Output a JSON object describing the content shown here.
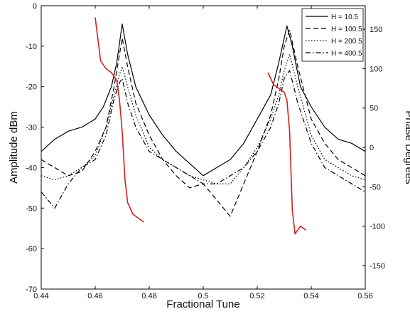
{
  "chart_data": {
    "type": "line",
    "xlabel": "Fractional Tune",
    "ylabel_left": "Amplitude dBm",
    "ylabel_right": "Phase Degrees",
    "xlim": [
      0.44,
      0.56
    ],
    "ylim_left": [
      -70,
      0
    ],
    "ylim_right": [
      -180,
      180
    ],
    "x_ticks": [
      "0.44",
      "0.46",
      "0.48",
      "0.5",
      "0.52",
      "0.54",
      "0.56"
    ],
    "y_left_ticks": [
      "-70",
      "-60",
      "-50",
      "-40",
      "-30",
      "-20",
      "-10",
      "0"
    ],
    "y_right_ticks": [
      "-150",
      "-100",
      "-50",
      "0",
      "50",
      "100",
      "150"
    ],
    "grid": false,
    "legend_position": "top-right",
    "series": [
      {
        "name": "H = 10.5",
        "axis": "left",
        "style": "solid",
        "color": "#000000",
        "x": [
          0.44,
          0.445,
          0.45,
          0.455,
          0.46,
          0.463,
          0.466,
          0.468,
          0.47,
          0.472,
          0.475,
          0.48,
          0.485,
          0.49,
          0.495,
          0.5,
          0.505,
          0.51,
          0.515,
          0.52,
          0.525,
          0.528,
          0.53,
          0.531,
          0.533,
          0.536,
          0.54,
          0.545,
          0.55,
          0.555,
          0.56
        ],
        "y": [
          -36,
          -33,
          -31,
          -30,
          -28,
          -25,
          -20,
          -14,
          -4.5,
          -12,
          -20,
          -27,
          -32,
          -36,
          -39,
          -42,
          -40,
          -38,
          -34,
          -28,
          -22,
          -14,
          -8,
          -5,
          -10,
          -20,
          -25,
          -30,
          -33,
          -34,
          -36
        ]
      },
      {
        "name": "H = 100.5",
        "axis": "left",
        "style": "dashed",
        "color": "#000000",
        "x": [
          0.44,
          0.445,
          0.45,
          0.455,
          0.46,
          0.464,
          0.467,
          0.469,
          0.47,
          0.472,
          0.475,
          0.48,
          0.485,
          0.49,
          0.495,
          0.5,
          0.505,
          0.51,
          0.515,
          0.52,
          0.525,
          0.528,
          0.53,
          0.532,
          0.535,
          0.54,
          0.545,
          0.55,
          0.555,
          0.56
        ],
        "y": [
          -38,
          -40,
          -42,
          -41,
          -36,
          -30,
          -20,
          -12,
          -8,
          -15,
          -24,
          -32,
          -38,
          -42,
          -45,
          -44,
          -48,
          -52,
          -44,
          -36,
          -27,
          -18,
          -10,
          -6,
          -15,
          -28,
          -34,
          -38,
          -40,
          -42
        ]
      },
      {
        "name": "H = 200.5",
        "axis": "left",
        "style": "dotted",
        "color": "#000000",
        "x": [
          0.44,
          0.445,
          0.45,
          0.455,
          0.46,
          0.464,
          0.467,
          0.469,
          0.47,
          0.472,
          0.475,
          0.48,
          0.485,
          0.49,
          0.495,
          0.5,
          0.505,
          0.51,
          0.515,
          0.52,
          0.525,
          0.528,
          0.53,
          0.532,
          0.535,
          0.54,
          0.545,
          0.55,
          0.555,
          0.56
        ],
        "y": [
          -42,
          -43,
          -42,
          -40,
          -37,
          -30,
          -22,
          -17,
          -15,
          -20,
          -27,
          -35,
          -38,
          -40,
          -42,
          -43,
          -44,
          -44,
          -40,
          -35,
          -28,
          -22,
          -16,
          -12,
          -20,
          -32,
          -38,
          -40,
          -42,
          -43
        ]
      },
      {
        "name": "H = 400.5",
        "axis": "left",
        "style": "dashdot",
        "color": "#000000",
        "x": [
          0.44,
          0.445,
          0.45,
          0.455,
          0.46,
          0.464,
          0.467,
          0.469,
          0.47,
          0.472,
          0.475,
          0.48,
          0.485,
          0.49,
          0.495,
          0.5,
          0.505,
          0.51,
          0.515,
          0.52,
          0.525,
          0.528,
          0.53,
          0.532,
          0.535,
          0.54,
          0.545,
          0.55,
          0.555,
          0.56
        ],
        "y": [
          -46,
          -50,
          -44,
          -40,
          -38,
          -32,
          -23,
          -19,
          -18,
          -24,
          -30,
          -36,
          -38,
          -40,
          -42,
          -44,
          -44,
          -42,
          -40,
          -36,
          -30,
          -24,
          -18,
          -16,
          -24,
          -34,
          -40,
          -42,
          -44,
          -46
        ]
      },
      {
        "name": "",
        "axis": "right",
        "style": "solid",
        "color": "#d42020",
        "x": [
          0.46,
          0.462,
          0.464,
          0.466,
          0.468,
          0.469,
          0.47,
          0.471,
          0.472,
          0.474,
          0.476,
          0.478
        ],
        "y": [
          165,
          110,
          100,
          95,
          85,
          60,
          20,
          -40,
          -70,
          -85,
          -90,
          -95
        ]
      },
      {
        "name": "",
        "axis": "right",
        "style": "solid",
        "color": "#d42020",
        "x": [
          0.524,
          0.526,
          0.528,
          0.53,
          0.531,
          0.532,
          0.533,
          0.534,
          0.536,
          0.538
        ],
        "y": [
          95,
          80,
          75,
          70,
          60,
          20,
          -80,
          -110,
          -100,
          -105
        ]
      }
    ]
  }
}
